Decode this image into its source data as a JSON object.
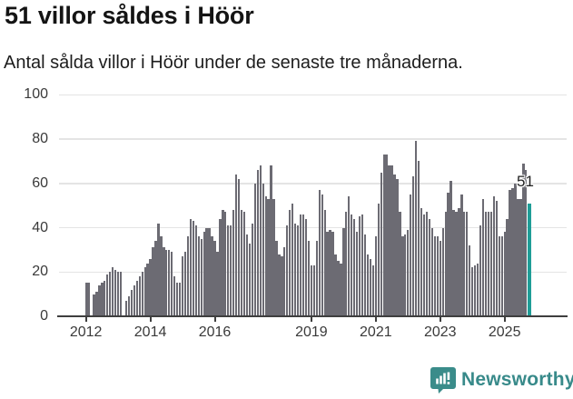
{
  "header": {
    "title": "51 villor såldes i Höör",
    "subtitle": "Antal sålda villor i Höör under de senaste tre månaderna."
  },
  "chart_data": {
    "type": "bar",
    "title": "51 villor såldes i Höör",
    "xlabel": "",
    "ylabel": "",
    "ylim": [
      0,
      100
    ],
    "y_ticks": [
      0,
      20,
      40,
      60,
      80,
      100
    ],
    "grid": "horizontal",
    "start_year": 2012,
    "months_per_bar": 1,
    "values": [
      15,
      15,
      0,
      10,
      11,
      14,
      15,
      16,
      19,
      20,
      22,
      21,
      20,
      20,
      0,
      7,
      9,
      12,
      14,
      16,
      18,
      20,
      22,
      24,
      26,
      31,
      34,
      42,
      36,
      31,
      30,
      30,
      29,
      18,
      15,
      15,
      27,
      29,
      36,
      44,
      43,
      41,
      36,
      35,
      38,
      40,
      40,
      36,
      34,
      29,
      44,
      48,
      47,
      41,
      41,
      48,
      64,
      62,
      48,
      47,
      37,
      33,
      42,
      60,
      66,
      68,
      60,
      54,
      53,
      68,
      53,
      34,
      28,
      27,
      31,
      41,
      48,
      51,
      42,
      41,
      46,
      46,
      44,
      34,
      23,
      23,
      34,
      57,
      55,
      48,
      38,
      39,
      38,
      28,
      25,
      24,
      40,
      47,
      54,
      46,
      44,
      38,
      45,
      46,
      37,
      28,
      26,
      23,
      36,
      51,
      65,
      73,
      73,
      68,
      68,
      64,
      62,
      47,
      36,
      37,
      39,
      55,
      63,
      79,
      70,
      49,
      46,
      47,
      44,
      40,
      36,
      36,
      34,
      40,
      47,
      56,
      61,
      48,
      47,
      49,
      55,
      47,
      47,
      32,
      22,
      23,
      24,
      41,
      53,
      47,
      47,
      47,
      54,
      52,
      36,
      36,
      38,
      44,
      57,
      58,
      60,
      53,
      53,
      69,
      66,
      51
    ],
    "x_tick_labels": [
      "2012",
      "2014",
      "2016",
      "2019",
      "2021",
      "2023",
      "2025"
    ],
    "x_tick_month_indices": [
      0,
      24,
      48,
      84,
      108,
      132,
      156
    ],
    "highlight_index": 165,
    "highlight_value": 51,
    "annotation": {
      "text": "51"
    },
    "bar_color": "#6c6b73",
    "highlight_color": "#1f9d97",
    "legend": "none"
  },
  "footer": {
    "brand": "Newsworthy",
    "brand_color": "#388a8a"
  }
}
